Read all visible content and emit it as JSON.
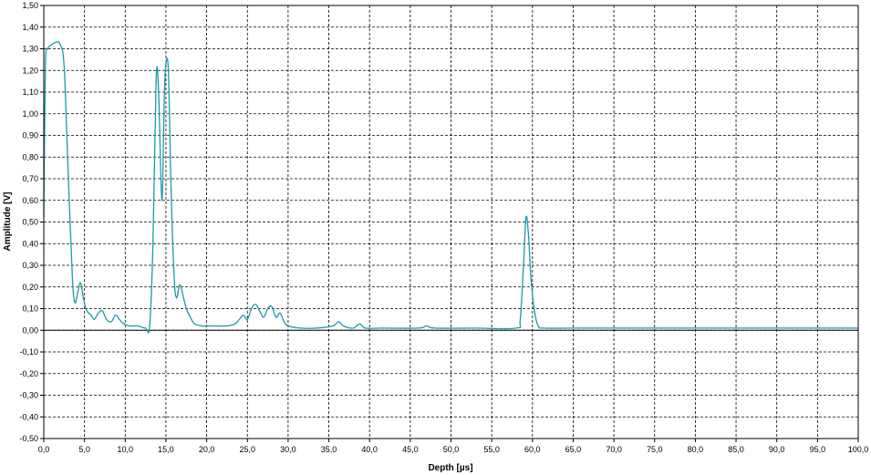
{
  "chart_data": {
    "type": "line",
    "xlabel": "Depth [µs]",
    "ylabel": "Amplitude [V]",
    "xlim": [
      0,
      100
    ],
    "ylim": [
      -0.5,
      1.5
    ],
    "x_tick_step": 5,
    "y_tick_step": 0.1,
    "x_tick_labels": [
      "0,0",
      "5,0",
      "10,0",
      "15,0",
      "20,0",
      "25,0",
      "30,0",
      "35,0",
      "40,0",
      "45,0",
      "50,0",
      "55,0",
      "60,0",
      "65,0",
      "70,0",
      "75,0",
      "80,0",
      "85,0",
      "90,0",
      "95,0",
      "100,0"
    ],
    "y_tick_labels": [
      "1,50",
      "1,40",
      "1,30",
      "1,20",
      "1,10",
      "1,00",
      "0,90",
      "0,80",
      "0,70",
      "0,60",
      "0,50",
      "0,40",
      "0,30",
      "0,20",
      "0,10",
      "0,00",
      "-0,10",
      "-0,20",
      "-0,30",
      "-0,40",
      "-0,50"
    ],
    "grid": true,
    "zero_line": true,
    "legend": "none",
    "series": [
      {
        "color": "#1a9aa8",
        "points": [
          [
            0.0,
            0.52
          ],
          [
            0.2,
            1.22
          ],
          [
            0.5,
            1.3
          ],
          [
            1.0,
            1.32
          ],
          [
            1.5,
            1.33
          ],
          [
            2.0,
            1.32
          ],
          [
            2.5,
            1.22
          ],
          [
            3.0,
            0.72
          ],
          [
            3.5,
            0.25
          ],
          [
            3.8,
            0.13
          ],
          [
            4.1,
            0.16
          ],
          [
            4.5,
            0.22
          ],
          [
            4.9,
            0.14
          ],
          [
            5.3,
            0.09
          ],
          [
            5.8,
            0.07
          ],
          [
            6.2,
            0.05
          ],
          [
            6.7,
            0.08
          ],
          [
            7.2,
            0.09
          ],
          [
            7.7,
            0.05
          ],
          [
            8.3,
            0.04
          ],
          [
            8.8,
            0.07
          ],
          [
            9.3,
            0.05
          ],
          [
            9.8,
            0.03
          ],
          [
            10.5,
            0.02
          ],
          [
            11.5,
            0.02
          ],
          [
            12.5,
            0.01
          ],
          [
            13.0,
            0.02
          ],
          [
            13.4,
            0.4
          ],
          [
            13.8,
            1.16
          ],
          [
            14.1,
            1.1
          ],
          [
            14.5,
            0.6
          ],
          [
            14.8,
            1.08
          ],
          [
            15.0,
            1.23
          ],
          [
            15.3,
            1.2
          ],
          [
            15.6,
            0.7
          ],
          [
            16.0,
            0.25
          ],
          [
            16.3,
            0.15
          ],
          [
            16.7,
            0.21
          ],
          [
            17.1,
            0.16
          ],
          [
            17.5,
            0.1
          ],
          [
            18.0,
            0.06
          ],
          [
            18.5,
            0.03
          ],
          [
            19.5,
            0.02
          ],
          [
            21.0,
            0.02
          ],
          [
            22.5,
            0.02
          ],
          [
            23.5,
            0.03
          ],
          [
            24.0,
            0.05
          ],
          [
            24.5,
            0.07
          ],
          [
            25.0,
            0.05
          ],
          [
            25.5,
            0.1
          ],
          [
            26.0,
            0.12
          ],
          [
            26.5,
            0.09
          ],
          [
            27.0,
            0.06
          ],
          [
            27.5,
            0.1
          ],
          [
            28.0,
            0.11
          ],
          [
            28.5,
            0.06
          ],
          [
            29.0,
            0.08
          ],
          [
            29.5,
            0.04
          ],
          [
            30.0,
            0.02
          ],
          [
            31.5,
            0.01
          ],
          [
            33.5,
            0.01
          ],
          [
            35.5,
            0.02
          ],
          [
            36.2,
            0.04
          ],
          [
            36.8,
            0.02
          ],
          [
            38.0,
            0.01
          ],
          [
            38.8,
            0.03
          ],
          [
            39.5,
            0.01
          ],
          [
            41.5,
            0.01
          ],
          [
            46.0,
            0.01
          ],
          [
            47.0,
            0.02
          ],
          [
            48.0,
            0.01
          ],
          [
            53.0,
            0.01
          ],
          [
            58.0,
            0.01
          ],
          [
            58.5,
            0.05
          ],
          [
            58.9,
            0.3
          ],
          [
            59.2,
            0.52
          ],
          [
            59.5,
            0.45
          ],
          [
            59.8,
            0.25
          ],
          [
            60.2,
            0.1
          ],
          [
            60.7,
            0.02
          ],
          [
            61.5,
            0.01
          ],
          [
            65.0,
            0.01
          ],
          [
            70.0,
            0.01
          ],
          [
            75.0,
            0.01
          ],
          [
            80.0,
            0.01
          ],
          [
            85.0,
            0.01
          ],
          [
            90.0,
            0.01
          ],
          [
            95.0,
            0.01
          ],
          [
            100.0,
            0.01
          ]
        ]
      }
    ]
  }
}
